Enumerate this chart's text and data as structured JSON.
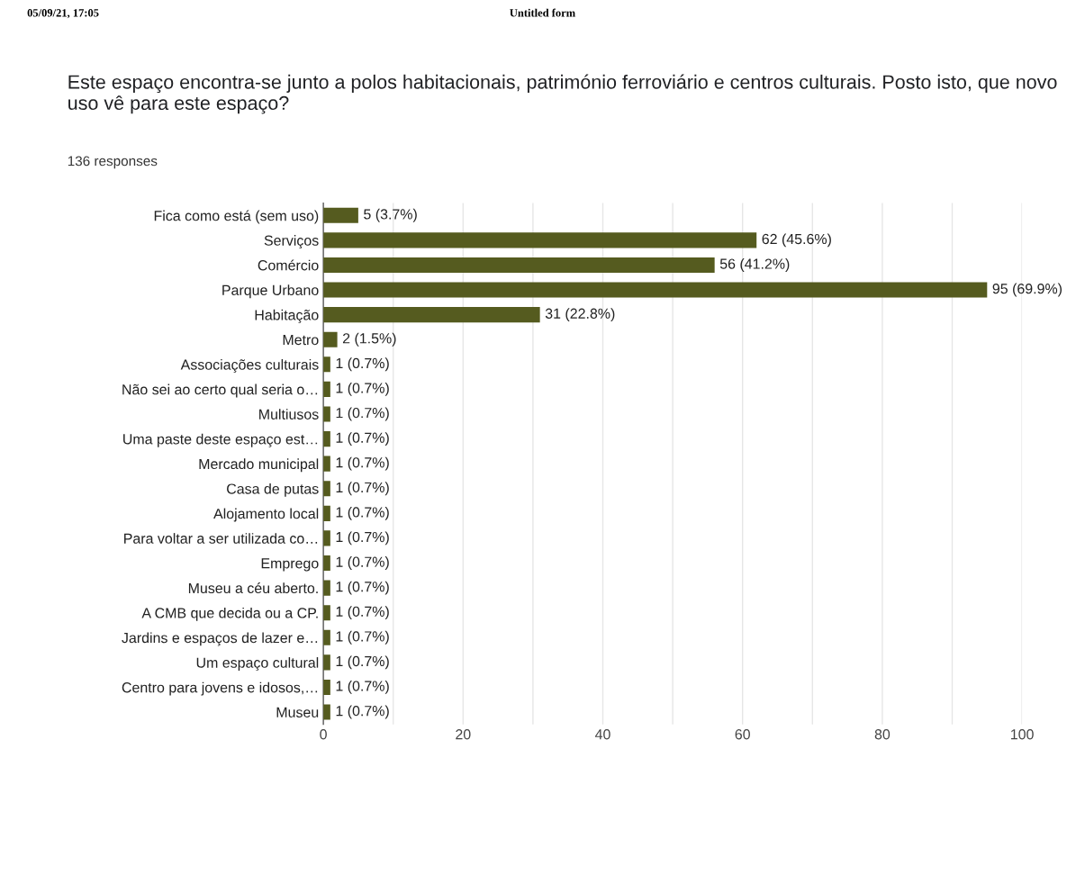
{
  "chart_data": {
    "type": "bar",
    "orientation": "horizontal",
    "title": "Este espaço encontra-se junto a polos habitacionais, património ferroviário e centros culturais. Posto isto, que novo uso vê para este espaço?",
    "subtitle": "136 responses",
    "annotations": [
      "05/09/21, 17:05",
      "Untitled form"
    ],
    "categories": [
      "Fica como está (sem uso)",
      "Serviços",
      "Comércio",
      "Parque Urbano",
      "Habitação",
      "Metro",
      "Associações culturais",
      "Não sei ao certo qual seria o…",
      "Multiusos",
      "Uma paste deste espaço est…",
      "Mercado municipal",
      "Casa de putas",
      "Alojamento local",
      "Para voltar a ser utilizada co…",
      "Emprego",
      "Museu a céu aberto.",
      "A CMB que decida ou a CP.",
      "Jardins e espaços de lazer e…",
      "Um espaço cultural",
      "Centro para jovens e idosos,…",
      "Museu"
    ],
    "values": [
      5,
      62,
      56,
      95,
      31,
      2,
      1,
      1,
      1,
      1,
      1,
      1,
      1,
      1,
      1,
      1,
      1,
      1,
      1,
      1,
      1
    ],
    "value_labels": [
      "5 (3.7%)",
      "62 (45.6%)",
      "56 (41.2%)",
      "95 (69.9%)",
      "31 (22.8%)",
      "2 (1.5%)",
      "1 (0.7%)",
      "1 (0.7%)",
      "1 (0.7%)",
      "1 (0.7%)",
      "1 (0.7%)",
      "1 (0.7%)",
      "1 (0.7%)",
      "1 (0.7%)",
      "1 (0.7%)",
      "1 (0.7%)",
      "1 (0.7%)",
      "1 (0.7%)",
      "1 (0.7%)",
      "1 (0.7%)",
      "1 (0.7%)"
    ],
    "color": "#555b1f",
    "xlim": [
      0,
      100
    ],
    "xticks": [
      0,
      {
        "value": 10,
        "label": null
      },
      20,
      {
        "value": 30,
        "label": null
      },
      40,
      {
        "value": 50,
        "label": null
      },
      60,
      {
        "value": 70,
        "label": null
      },
      80,
      {
        "value": 90,
        "label": null
      },
      100
    ],
    "grid": "x"
  }
}
